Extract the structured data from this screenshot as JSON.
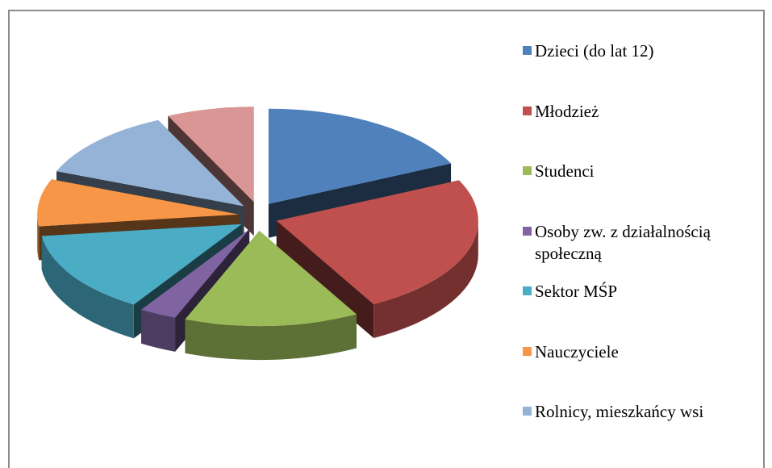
{
  "chart_data": {
    "type": "pie3d",
    "categories": [
      "Dzieci (do lat 12)",
      "Młodzież",
      "Studenci",
      "Osoby zw. z działalnością społeczną",
      "Sektor MŚP",
      "Nauczyciele",
      "Rolnicy, mieszkańcy wsi",
      null
    ],
    "values": [
      18,
      24,
      14,
      3,
      14,
      8,
      12,
      7
    ],
    "colors": [
      "#4f81bd",
      "#c0504d",
      "#9bbb59",
      "#8064a2",
      "#4bacc6",
      "#f79646",
      "#95b3d7",
      "#d99694"
    ],
    "legend": "right"
  }
}
